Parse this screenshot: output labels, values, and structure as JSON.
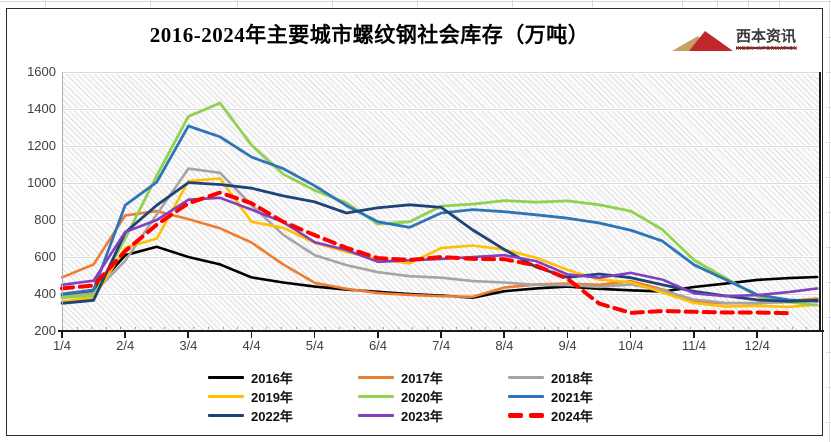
{
  "title": "2016-2024年主要城市螺纹钢社会库存（万吨）",
  "logo": {
    "name": "西本资讯",
    "subtext": "XIBEN INFORMATION",
    "colors": {
      "gold": "#C9A063",
      "red": "#C0272D",
      "text": "#3A3A3A"
    }
  },
  "chart_data": {
    "type": "line",
    "title": "2016-2024年主要城市螺纹钢社会库存（万吨）",
    "xlabel": "",
    "ylabel": "",
    "ylim": [
      200,
      1600
    ],
    "y_ticks": [
      200,
      400,
      600,
      800,
      1000,
      1200,
      1400,
      1600
    ],
    "x_ticks": [
      "1/4",
      "2/4",
      "3/4",
      "4/4",
      "5/4",
      "6/4",
      "7/4",
      "8/4",
      "9/4",
      "10/4",
      "11/4",
      "12/4"
    ],
    "grid": "horizontal light-gray gridlines, diagonal-hatched plot background",
    "legend_position": "bottom, 3 columns",
    "x_months": [
      0,
      0.5,
      1,
      1.5,
      2,
      2.5,
      3,
      3.5,
      4,
      4.5,
      5,
      5.5,
      6,
      6.5,
      7,
      7.5,
      8,
      8.5,
      9,
      9.5,
      10,
      10.5,
      11,
      11.5,
      11.95
    ],
    "series": [
      {
        "name": "2016年",
        "color": "#000000",
        "width": 2.6,
        "values": [
          390,
          420,
          610,
          655,
          600,
          560,
          490,
          462,
          440,
          424,
          412,
          400,
          392,
          380,
          415,
          430,
          440,
          428,
          420,
          413,
          438,
          456,
          476,
          486,
          492
        ]
      },
      {
        "name": "2017年",
        "color": "#ED7D31",
        "width": 2.6,
        "values": [
          490,
          560,
          825,
          848,
          805,
          755,
          678,
          560,
          460,
          428,
          405,
          395,
          388,
          385,
          435,
          452,
          456,
          450,
          470,
          425,
          360,
          350,
          352,
          362,
          375
        ]
      },
      {
        "name": "2018年",
        "color": "#A5A5A5",
        "width": 2.6,
        "values": [
          385,
          405,
          580,
          830,
          1078,
          1055,
          880,
          720,
          610,
          556,
          518,
          496,
          488,
          470,
          462,
          450,
          448,
          438,
          452,
          420,
          370,
          352,
          350,
          356,
          362
        ]
      },
      {
        "name": "2019年",
        "color": "#FFC000",
        "width": 2.6,
        "values": [
          360,
          380,
          650,
          700,
          1010,
          1025,
          790,
          758,
          676,
          628,
          588,
          566,
          648,
          662,
          640,
          596,
          530,
          478,
          464,
          408,
          352,
          332,
          336,
          330,
          342
        ]
      },
      {
        "name": "2020年",
        "color": "#92D050",
        "width": 2.8,
        "values": [
          380,
          392,
          700,
          1040,
          1360,
          1432,
          1205,
          1048,
          960,
          893,
          778,
          790,
          875,
          886,
          905,
          896,
          903,
          882,
          848,
          748,
          584,
          486,
          388,
          356,
          340
        ]
      },
      {
        "name": "2021年",
        "color": "#2E75B6",
        "width": 2.8,
        "values": [
          400,
          422,
          880,
          1005,
          1308,
          1250,
          1140,
          1078,
          985,
          878,
          790,
          760,
          838,
          856,
          845,
          828,
          810,
          784,
          745,
          686,
          558,
          478,
          396,
          368,
          360
        ]
      },
      {
        "name": "2022年",
        "color": "#1F4279",
        "width": 2.8,
        "values": [
          350,
          366,
          732,
          880,
          1002,
          992,
          972,
          930,
          898,
          838,
          866,
          882,
          868,
          746,
          640,
          546,
          490,
          508,
          488,
          450,
          414,
          390,
          368,
          360,
          366
        ]
      },
      {
        "name": "2023年",
        "color": "#8040BF",
        "width": 2.6,
        "values": [
          450,
          472,
          735,
          800,
          910,
          920,
          856,
          788,
          680,
          638,
          574,
          582,
          590,
          600,
          610,
          578,
          506,
          488,
          514,
          478,
          404,
          388,
          394,
          410,
          430
        ]
      },
      {
        "name": "2024年",
        "color": "#FF0000",
        "width": 4,
        "dash": "11 7",
        "values": [
          430,
          446,
          632,
          775,
          890,
          948,
          890,
          790,
          718,
          650,
          594,
          584,
          600,
          590,
          588,
          554,
          482,
          348,
          298,
          308,
          304,
          300,
          300,
          296
        ]
      }
    ]
  }
}
